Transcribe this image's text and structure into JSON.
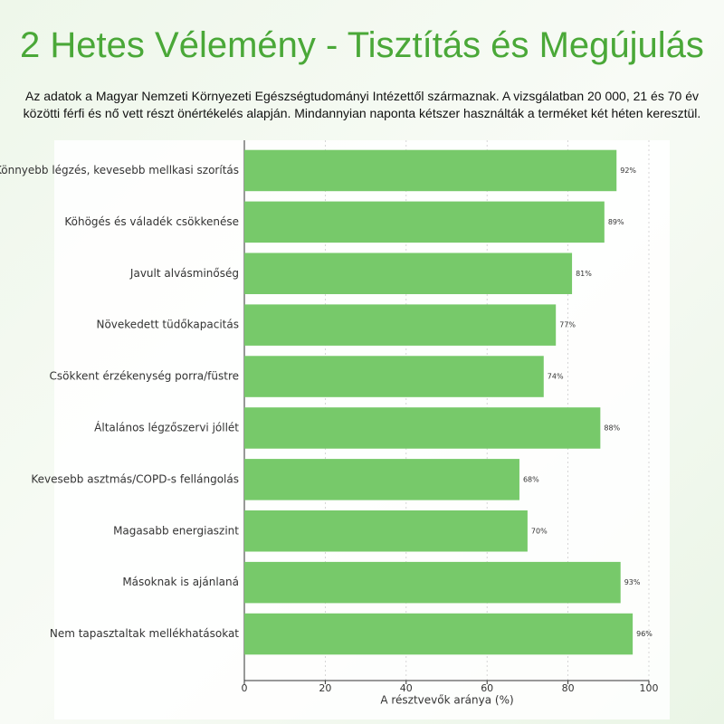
{
  "chart_data": {
    "type": "barh",
    "title": "2 Hetes Vélemény - Tisztítás és Megújulás",
    "subtitle": "Az adatok a Magyar Nemzeti Környezeti Egészségtudományi Intézettől származnak. A vizsgálatban 20 000, 21 és 70 év közötti férfi és nő vett részt önértékelés alapján. Mindannyian naponta kétszer használták a terméket két héten keresztül.",
    "xlabel": "A résztvevők aránya (%)",
    "categories": [
      "Könnyebb légzés, kevesebb mellkasi szorítás",
      "Köhögés és váladék csökkenése",
      "Javult alvásminőség",
      "Növekedett tüdőkapacitás",
      "Csökkent érzékenység porra/füstre",
      "Általános légzőszervi jóllét",
      "Kevesebb asztmás/COPD-s fellángolás",
      "Magasabb energiaszint",
      "Másoknak is ajánlaná",
      "Nem tapasztaltak mellékhatásokat"
    ],
    "values": [
      92,
      89,
      81,
      77,
      74,
      88,
      68,
      70,
      93,
      96
    ],
    "value_labels": [
      "92%",
      "89%",
      "81%",
      "77%",
      "74%",
      "88%",
      "68%",
      "70%",
      "93%",
      "96%"
    ],
    "color": "#77c96a",
    "xlim": [
      0,
      100
    ],
    "xticks": [
      0,
      20,
      40,
      60,
      80,
      100
    ],
    "grid": true
  }
}
